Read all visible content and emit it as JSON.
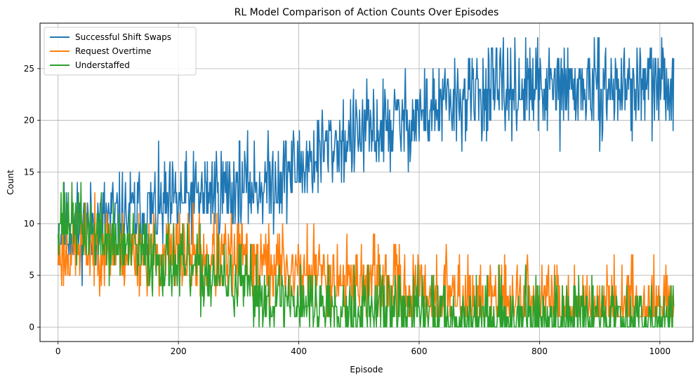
{
  "chart_data": {
    "type": "line",
    "title": "RL Model Comparison of Action Counts Over Episodes",
    "xlabel": "Episode",
    "ylabel": "Count",
    "xlim": [
      -30,
      1055
    ],
    "ylim": [
      -1.4,
      29.4
    ],
    "xticks": [
      0,
      200,
      400,
      600,
      800,
      1000
    ],
    "yticks": [
      0,
      5,
      10,
      15,
      20,
      25
    ],
    "grid": true,
    "legend_position": "top-left",
    "episodes": 1024,
    "series": [
      {
        "name": "Successful Shift Swaps",
        "color": "#1f77b4",
        "keypoints": [
          [
            0,
            9
          ],
          [
            50,
            10
          ],
          [
            100,
            10.5
          ],
          [
            150,
            11
          ],
          [
            200,
            12
          ],
          [
            250,
            13
          ],
          [
            300,
            13.5
          ],
          [
            350,
            14
          ],
          [
            400,
            15.5
          ],
          [
            450,
            17.5
          ],
          [
            500,
            18.5
          ],
          [
            550,
            19.5
          ],
          [
            600,
            20.5
          ],
          [
            650,
            21.5
          ],
          [
            700,
            22.5
          ],
          [
            750,
            23
          ],
          [
            800,
            23
          ],
          [
            900,
            23
          ],
          [
            1023,
            23.5
          ]
        ],
        "spread": 2.2,
        "min": 3,
        "max": 28,
        "seed": 11
      },
      {
        "name": "Request Overtime",
        "color": "#ff7f0e",
        "keypoints": [
          [
            0,
            7
          ],
          [
            50,
            8
          ],
          [
            100,
            7.5
          ],
          [
            150,
            7
          ],
          [
            200,
            7
          ],
          [
            250,
            7
          ],
          [
            300,
            6.5
          ],
          [
            350,
            6
          ],
          [
            400,
            5.5
          ],
          [
            450,
            5
          ],
          [
            500,
            4.5
          ],
          [
            550,
            4
          ],
          [
            600,
            3.5
          ],
          [
            650,
            3
          ],
          [
            700,
            2.5
          ],
          [
            800,
            2.5
          ],
          [
            900,
            2.2
          ],
          [
            1023,
            2
          ]
        ],
        "spread": 2.0,
        "min": 1,
        "max": 15,
        "seed": 23
      },
      {
        "name": "Understaffed",
        "color": "#2ca02c",
        "keypoints": [
          [
            0,
            11
          ],
          [
            30,
            10
          ],
          [
            60,
            9
          ],
          [
            100,
            8
          ],
          [
            150,
            7
          ],
          [
            200,
            6
          ],
          [
            250,
            5
          ],
          [
            300,
            4
          ],
          [
            350,
            3
          ],
          [
            400,
            2.5
          ],
          [
            500,
            2
          ],
          [
            600,
            1.5
          ],
          [
            700,
            1
          ],
          [
            800,
            1
          ],
          [
            900,
            1
          ],
          [
            1023,
            1
          ]
        ],
        "spread": 1.8,
        "min": 0,
        "max": 15,
        "seed": 37
      }
    ]
  }
}
